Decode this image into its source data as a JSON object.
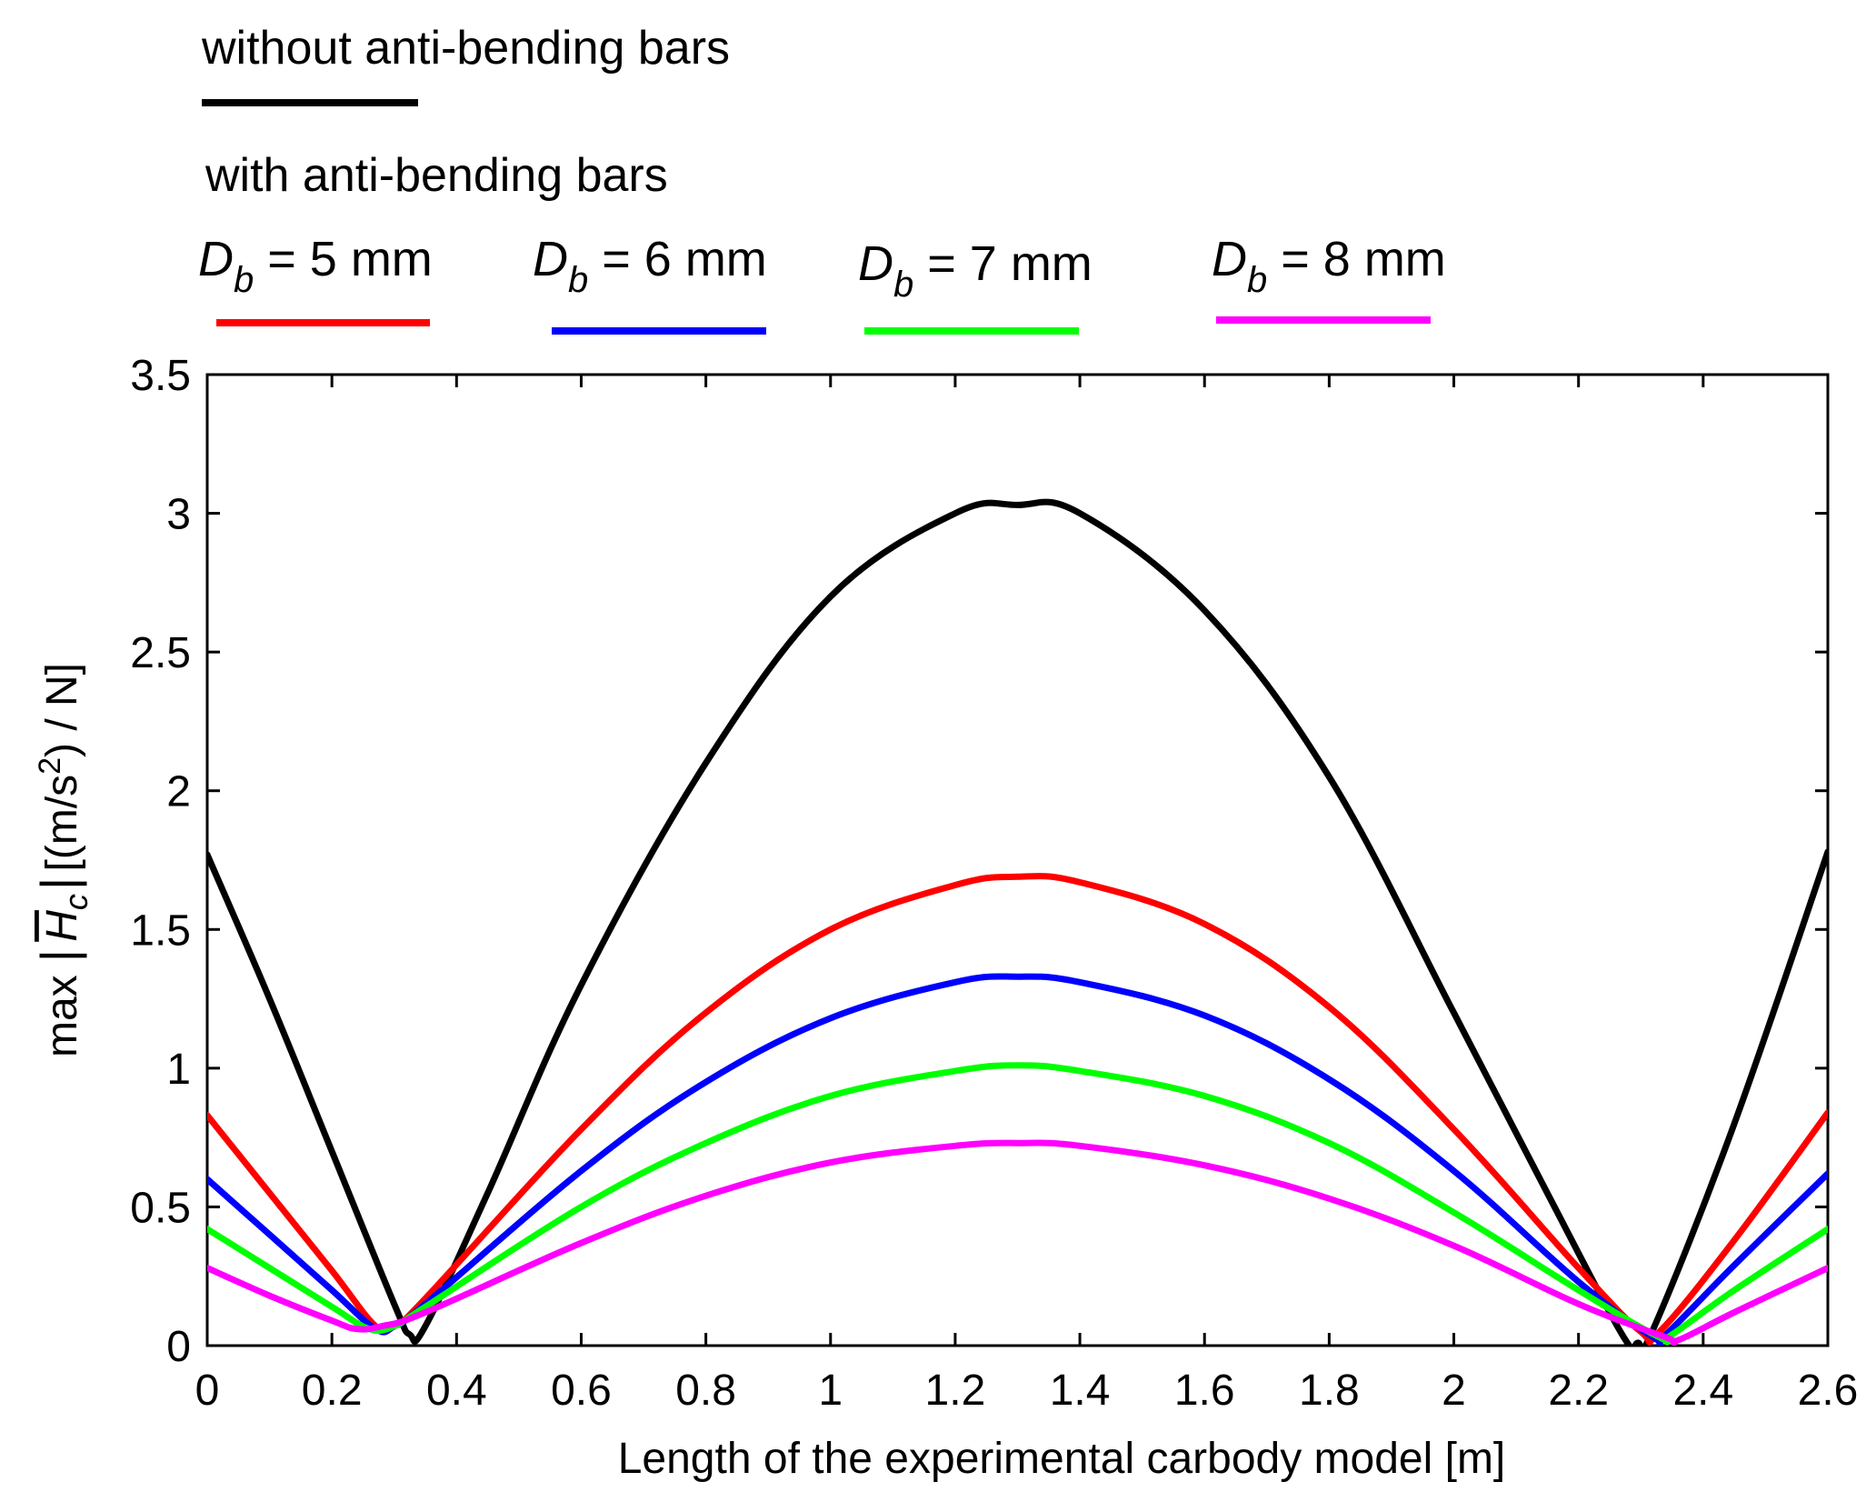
{
  "chart_data": {
    "type": "line",
    "title": "",
    "xlabel": "Length of the experimental carbody model [m]",
    "ylabel": {
      "prefix": "max",
      "symbol": "H",
      "subscript": "c",
      "unit": "[(m/s",
      "unit_sup": "2",
      "unit_end": ") / N]"
    },
    "xlim": [
      0,
      2.6
    ],
    "ylim": [
      0,
      3.5
    ],
    "xticks": [
      "0",
      "0.2",
      "0.4",
      "0.6",
      "0.8",
      "1",
      "1.2",
      "1.4",
      "1.6",
      "1.8",
      "2",
      "2.2",
      "2.4",
      "2.6"
    ],
    "yticks": [
      "0",
      "0.5",
      "1",
      "1.5",
      "2",
      "2.5",
      "3",
      "3.5"
    ],
    "legend": {
      "group1_title": "without anti-bending bars",
      "group2_title": "with anti-bending bars"
    },
    "series": [
      {
        "name": "without anti-bending bars",
        "color": "#000000",
        "x": [
          0,
          0.1,
          0.2,
          0.3,
          0.325,
          0.35,
          0.45,
          0.6,
          0.8,
          1.0,
          1.2,
          1.3,
          1.4,
          1.6,
          1.8,
          2.0,
          2.15,
          2.27,
          2.295,
          2.32,
          2.45,
          2.6
        ],
        "y": [
          1.77,
          1.25,
          0.7,
          0.15,
          0.04,
          0.07,
          0.55,
          1.3,
          2.1,
          2.7,
          3.0,
          3.03,
          3.0,
          2.65,
          2.05,
          1.2,
          0.55,
          0.04,
          0.01,
          0.06,
          0.8,
          1.78
        ]
      },
      {
        "name": "D_b = 5 mm",
        "label_sym": "D",
        "label_sub": "b",
        "label_val": " = 5 mm",
        "color": "#ff0000",
        "x": [
          0,
          0.1,
          0.2,
          0.27,
          0.3,
          0.35,
          0.6,
          0.8,
          1.0,
          1.2,
          1.3,
          1.4,
          1.6,
          1.8,
          2.0,
          2.2,
          2.3,
          2.33,
          2.45,
          2.6
        ],
        "y": [
          0.83,
          0.55,
          0.27,
          0.07,
          0.07,
          0.17,
          0.78,
          1.2,
          1.5,
          1.66,
          1.69,
          1.67,
          1.52,
          1.22,
          0.78,
          0.28,
          0.05,
          0.05,
          0.38,
          0.84
        ]
      },
      {
        "name": "D_b = 6 mm",
        "label_sym": "D",
        "label_sub": "b",
        "label_val": " = 6 mm",
        "color": "#0000ff",
        "x": [
          0,
          0.1,
          0.2,
          0.27,
          0.3,
          0.35,
          0.6,
          0.8,
          1.0,
          1.2,
          1.3,
          1.4,
          1.6,
          1.8,
          2.0,
          2.2,
          2.32,
          2.34,
          2.45,
          2.6
        ],
        "y": [
          0.6,
          0.4,
          0.2,
          0.06,
          0.07,
          0.15,
          0.63,
          0.95,
          1.18,
          1.31,
          1.33,
          1.31,
          1.19,
          0.96,
          0.63,
          0.23,
          0.03,
          0.04,
          0.29,
          0.62
        ]
      },
      {
        "name": "D_b = 7 mm",
        "label_sym": "D",
        "label_sub": "b",
        "label_val": " = 7 mm",
        "color": "#00ff00",
        "x": [
          0,
          0.1,
          0.2,
          0.26,
          0.3,
          0.35,
          0.6,
          0.8,
          1.0,
          1.2,
          1.3,
          1.4,
          1.6,
          1.8,
          2.0,
          2.2,
          2.33,
          2.35,
          2.45,
          2.6
        ],
        "y": [
          0.42,
          0.28,
          0.14,
          0.06,
          0.07,
          0.14,
          0.5,
          0.73,
          0.9,
          0.99,
          1.01,
          0.99,
          0.9,
          0.73,
          0.48,
          0.2,
          0.03,
          0.04,
          0.2,
          0.42
        ]
      },
      {
        "name": "D_b = 8 mm",
        "label_sym": "D",
        "label_sub": "b",
        "label_val": " = 8 mm",
        "color": "#ff00ff",
        "x": [
          0,
          0.1,
          0.2,
          0.24,
          0.28,
          0.35,
          0.6,
          0.8,
          1.0,
          1.2,
          1.3,
          1.4,
          1.6,
          1.8,
          2.0,
          2.2,
          2.34,
          2.36,
          2.45,
          2.6
        ],
        "y": [
          0.28,
          0.18,
          0.09,
          0.06,
          0.07,
          0.12,
          0.37,
          0.54,
          0.66,
          0.72,
          0.73,
          0.72,
          0.65,
          0.53,
          0.36,
          0.15,
          0.03,
          0.02,
          0.12,
          0.28
        ]
      }
    ]
  }
}
